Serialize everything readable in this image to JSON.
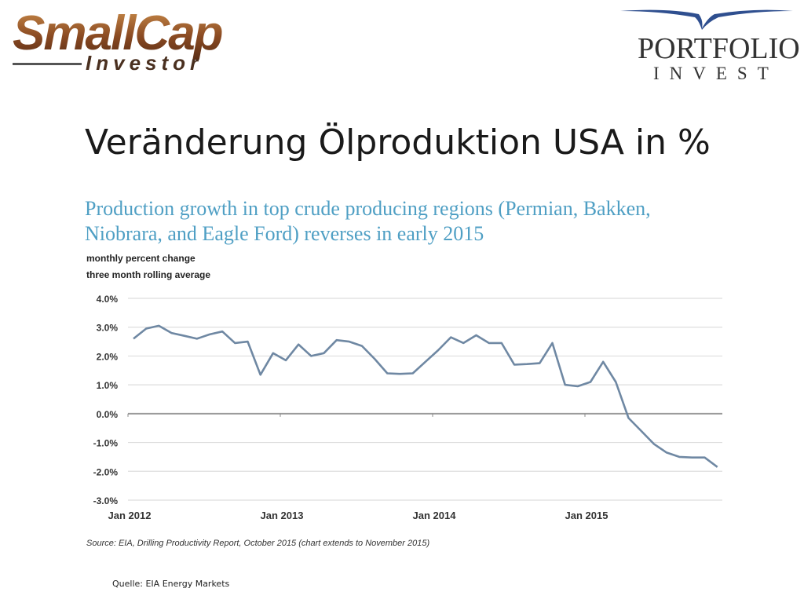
{
  "logos": {
    "left": {
      "main": "SmallCap",
      "sub": "Investor"
    },
    "right": {
      "name": "PORTFOLIO",
      "sub": "INVEST"
    }
  },
  "slide": {
    "title": "Veränderung Ölproduktion USA in %",
    "quelle": "Quelle: EIA Energy Markets"
  },
  "chart": {
    "title_line1": "Production growth in top crude producing regions (Permian, Bakken,",
    "title_line2": "Niobrara, and Eagle Ford) reverses in early 2015",
    "subtitle_line1": "monthly percent change",
    "subtitle_line2": "three month rolling average",
    "source": "Source: EIA, Drilling Productivity Report, October 2015 (chart extends to November 2015)",
    "line_color": "#6f88a3",
    "title_color": "#4f9fc4"
  },
  "chart_data": {
    "type": "line",
    "title": "Production growth in top crude producing regions (Permian, Bakken, Niobrara, and Eagle Ford) reverses in early 2015",
    "subtitle": "monthly percent change, three month rolling average",
    "xlabel": "",
    "ylabel": "monthly percent change",
    "ylim": [
      -3.0,
      4.0
    ],
    "yticks": [
      "4.0%",
      "3.0%",
      "2.0%",
      "1.0%",
      "0.0%",
      "-1.0%",
      "-2.0%",
      "-3.0%"
    ],
    "xticks": [
      "Jan 2012",
      "Jan 2013",
      "Jan 2014",
      "Jan 2015"
    ],
    "grid": true,
    "legend": null,
    "x": [
      "2012-01",
      "2012-02",
      "2012-03",
      "2012-04",
      "2012-05",
      "2012-06",
      "2012-07",
      "2012-08",
      "2012-09",
      "2012-10",
      "2012-11",
      "2012-12",
      "2013-01",
      "2013-02",
      "2013-03",
      "2013-04",
      "2013-05",
      "2013-06",
      "2013-07",
      "2013-08",
      "2013-09",
      "2013-10",
      "2013-11",
      "2013-12",
      "2014-01",
      "2014-02",
      "2014-03",
      "2014-04",
      "2014-05",
      "2014-06",
      "2014-07",
      "2014-08",
      "2014-09",
      "2014-10",
      "2014-11",
      "2014-12",
      "2015-01",
      "2015-02",
      "2015-03",
      "2015-04",
      "2015-05",
      "2015-06",
      "2015-07",
      "2015-08",
      "2015-09",
      "2015-10",
      "2015-11"
    ],
    "series": [
      {
        "name": "Production growth (3-month rolling avg, %)",
        "values": [
          2.6,
          2.95,
          3.05,
          2.8,
          2.7,
          2.6,
          2.75,
          2.85,
          2.45,
          2.5,
          1.35,
          2.1,
          1.85,
          2.4,
          2.0,
          2.1,
          2.55,
          2.5,
          2.35,
          1.9,
          1.4,
          1.38,
          1.4,
          1.8,
          2.2,
          2.65,
          2.45,
          2.72,
          2.45,
          2.45,
          1.7,
          1.72,
          1.75,
          2.45,
          1.0,
          0.95,
          1.1,
          1.8,
          1.1,
          -0.15,
          -0.6,
          -1.05,
          -1.35,
          -1.5,
          -1.52,
          -1.52,
          -1.85
        ]
      }
    ]
  }
}
